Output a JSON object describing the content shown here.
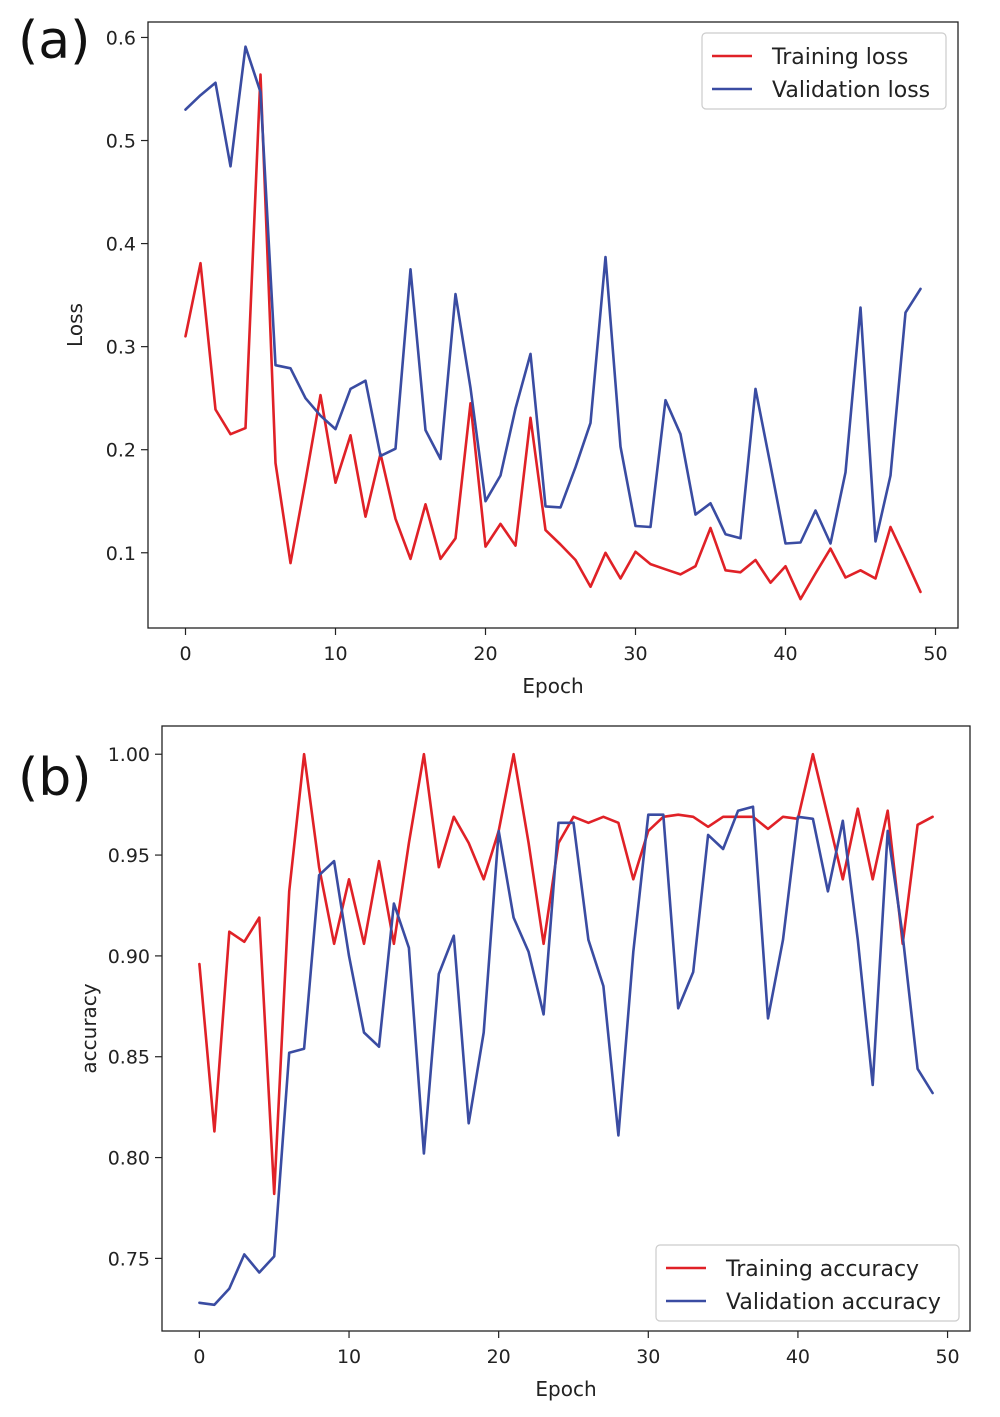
{
  "chart_data": [
    {
      "type": "line",
      "panel_label": "(a)",
      "title": "",
      "xlabel": "Epoch",
      "ylabel": "Loss",
      "xlim": [
        -2.5,
        51.5
      ],
      "ylim": [
        0.027,
        0.615
      ],
      "xticks": [
        0,
        10,
        20,
        30,
        40,
        50
      ],
      "xtick_labels": [
        "0",
        "10",
        "20",
        "30",
        "40",
        "50"
      ],
      "yticks": [
        0.1,
        0.2,
        0.3,
        0.4,
        0.5,
        0.6
      ],
      "ytick_labels": [
        "0.1",
        "0.2",
        "0.3",
        "0.4",
        "0.5",
        "0.6"
      ],
      "grid": false,
      "legend_position": "top-right",
      "x": [
        0,
        1,
        2,
        3,
        4,
        5,
        6,
        7,
        8,
        9,
        10,
        11,
        12,
        13,
        14,
        15,
        16,
        17,
        18,
        19,
        20,
        21,
        22,
        23,
        24,
        25,
        26,
        27,
        28,
        29,
        30,
        31,
        32,
        33,
        34,
        35,
        36,
        37,
        38,
        39,
        40,
        41,
        42,
        43,
        44,
        45,
        46,
        47,
        48,
        49
      ],
      "series": [
        {
          "name": "Training loss",
          "color": "#e02127",
          "values": [
            0.31,
            0.381,
            0.239,
            0.215,
            0.221,
            0.564,
            0.187,
            0.09,
            0.17,
            0.253,
            0.168,
            0.214,
            0.135,
            0.196,
            0.133,
            0.094,
            0.147,
            0.094,
            0.114,
            0.245,
            0.106,
            0.128,
            0.107,
            0.231,
            0.122,
            0.108,
            0.093,
            0.067,
            0.1,
            0.075,
            0.101,
            0.089,
            0.084,
            0.079,
            0.087,
            0.124,
            0.083,
            0.081,
            0.093,
            0.071,
            0.087,
            0.055,
            0.08,
            0.104,
            0.076,
            0.083,
            0.075,
            0.125,
            0.094,
            0.062
          ]
        },
        {
          "name": "Validation loss",
          "color": "#3a4ca2",
          "values": [
            0.53,
            0.544,
            0.556,
            0.475,
            0.591,
            0.547,
            0.282,
            0.279,
            0.25,
            0.233,
            0.22,
            0.259,
            0.267,
            0.194,
            0.201,
            0.375,
            0.219,
            0.191,
            0.351,
            0.26,
            0.15,
            0.175,
            0.24,
            0.293,
            0.145,
            0.144,
            0.183,
            0.226,
            0.387,
            0.203,
            0.126,
            0.125,
            0.248,
            0.215,
            0.137,
            0.148,
            0.118,
            0.114,
            0.259,
            0.185,
            0.109,
            0.11,
            0.141,
            0.109,
            0.178,
            0.338,
            0.111,
            0.175,
            0.333,
            0.356
          ]
        }
      ]
    },
    {
      "type": "line",
      "panel_label": "(b)",
      "title": "",
      "xlabel": "Epoch",
      "ylabel": "accuracy",
      "xlim": [
        -2.5,
        51.5
      ],
      "ylim": [
        0.714,
        1.014
      ],
      "xticks": [
        0,
        10,
        20,
        30,
        40,
        50
      ],
      "xtick_labels": [
        "0",
        "10",
        "20",
        "30",
        "40",
        "50"
      ],
      "yticks": [
        0.75,
        0.8,
        0.85,
        0.9,
        0.95,
        1.0
      ],
      "ytick_labels": [
        "0.75",
        "0.80",
        "0.85",
        "0.90",
        "0.95",
        "1.00"
      ],
      "grid": false,
      "legend_position": "bottom-right",
      "x": [
        0,
        1,
        2,
        3,
        4,
        5,
        6,
        7,
        8,
        9,
        10,
        11,
        12,
        13,
        14,
        15,
        16,
        17,
        18,
        19,
        20,
        21,
        22,
        23,
        24,
        25,
        26,
        27,
        28,
        29,
        30,
        31,
        32,
        33,
        34,
        35,
        36,
        37,
        38,
        39,
        40,
        41,
        42,
        43,
        44,
        45,
        46,
        47,
        48,
        49
      ],
      "series": [
        {
          "name": "Training accuracy",
          "color": "#e02127",
          "values": [
            0.896,
            0.813,
            0.912,
            0.907,
            0.919,
            0.782,
            0.932,
            1.0,
            0.944,
            0.906,
            0.938,
            0.906,
            0.947,
            0.906,
            0.956,
            1.0,
            0.944,
            0.969,
            0.956,
            0.938,
            0.962,
            1.0,
            0.956,
            0.906,
            0.956,
            0.969,
            0.966,
            0.969,
            0.966,
            0.938,
            0.962,
            0.969,
            0.97,
            0.969,
            0.964,
            0.969,
            0.969,
            0.969,
            0.963,
            0.969,
            0.968,
            1.0,
            0.969,
            0.938,
            0.973,
            0.938,
            0.972,
            0.906,
            0.965,
            0.969
          ]
        },
        {
          "name": "Validation accuracy",
          "color": "#3a4ca2",
          "values": [
            0.728,
            0.727,
            0.735,
            0.752,
            0.743,
            0.751,
            0.852,
            0.854,
            0.94,
            0.947,
            0.9,
            0.862,
            0.855,
            0.926,
            0.904,
            0.802,
            0.891,
            0.91,
            0.817,
            0.862,
            0.962,
            0.919,
            0.902,
            0.871,
            0.966,
            0.966,
            0.908,
            0.885,
            0.811,
            0.902,
            0.97,
            0.97,
            0.874,
            0.892,
            0.96,
            0.953,
            0.972,
            0.974,
            0.869,
            0.908,
            0.969,
            0.968,
            0.932,
            0.967,
            0.908,
            0.836,
            0.962,
            0.91,
            0.844,
            0.832
          ]
        }
      ]
    }
  ]
}
